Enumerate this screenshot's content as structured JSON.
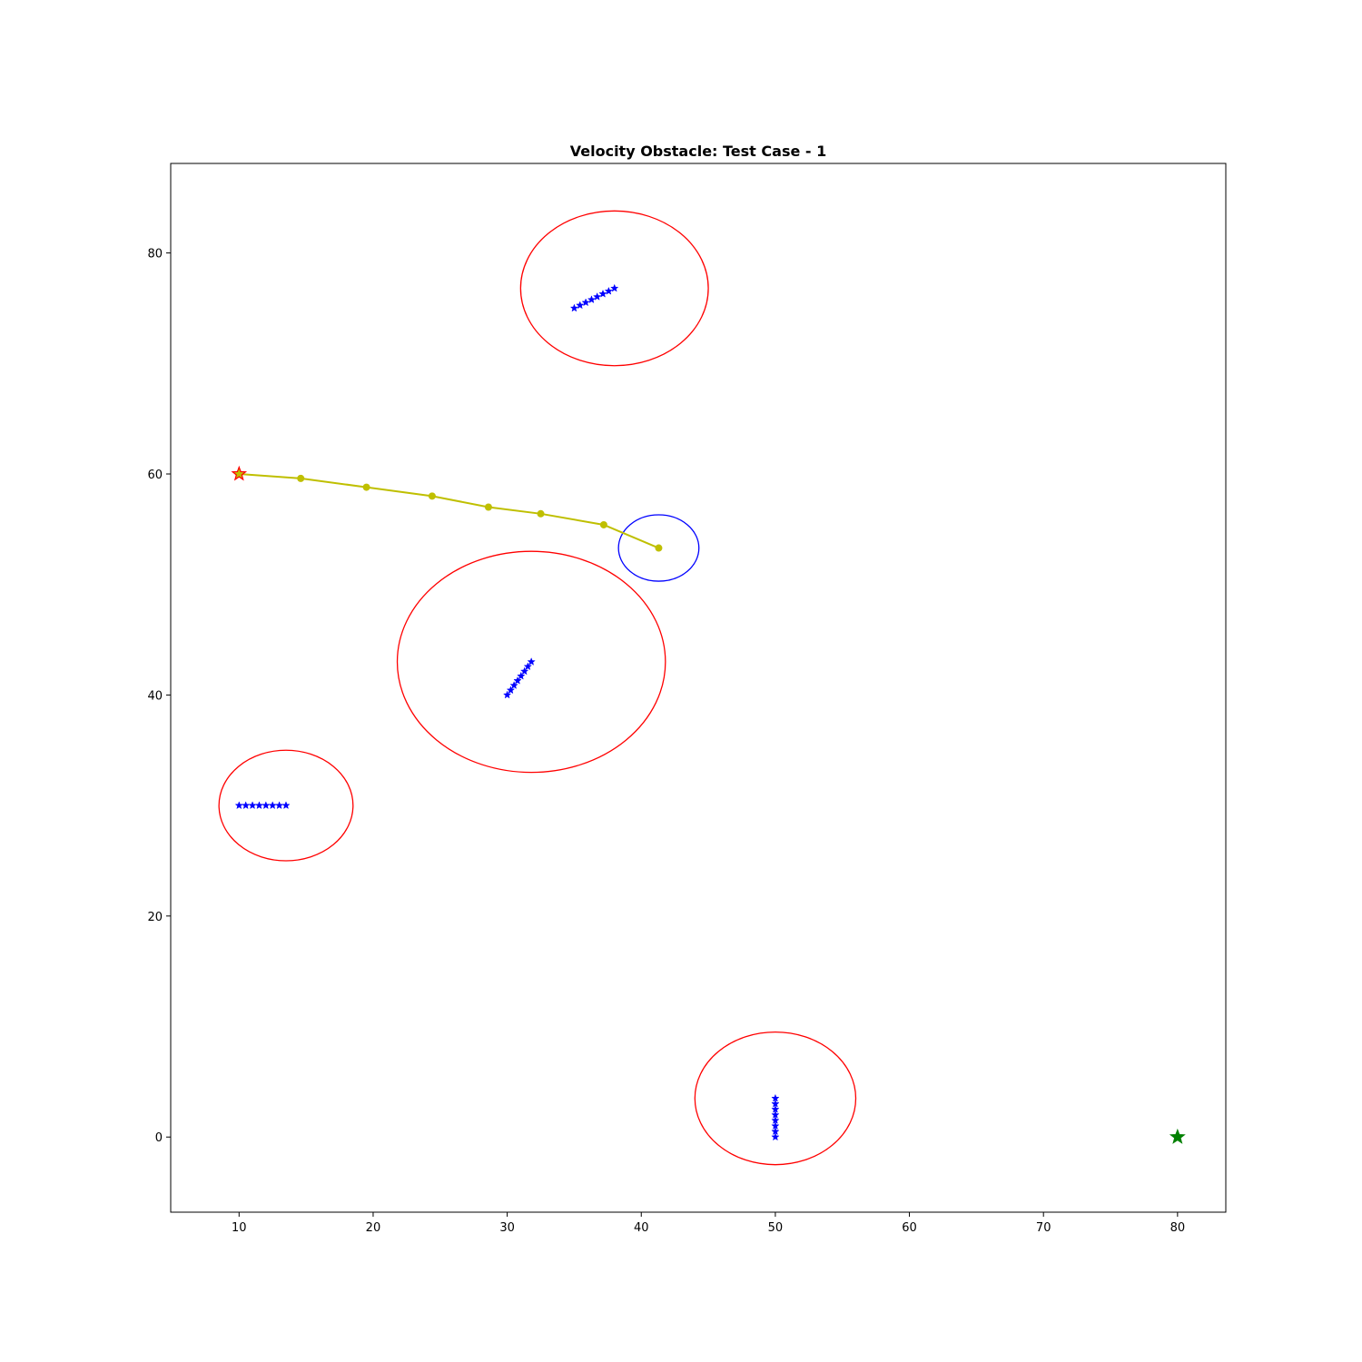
{
  "chart_data": {
    "type": "scatter",
    "title": "Velocity Obstacle: Test Case - 1",
    "xlabel": "",
    "ylabel": "",
    "xlim": [
      4.9,
      83.6
    ],
    "ylim": [
      -6.8,
      88.1
    ],
    "x_ticks": [
      10,
      20,
      30,
      40,
      50,
      60,
      70,
      80
    ],
    "y_ticks": [
      0,
      20,
      40,
      60,
      80
    ],
    "grid": false,
    "legend": "none",
    "start": {
      "x": 10,
      "y": 60,
      "color": "#ff0000",
      "fill": "#bfbf00",
      "marker": "star"
    },
    "goal": {
      "x": 80,
      "y": 0,
      "color": "#008000",
      "marker": "star"
    },
    "robot_path": {
      "color": "#bfbf00",
      "points": [
        [
          10,
          60
        ],
        [
          14.6,
          59.6
        ],
        [
          19.5,
          58.8
        ],
        [
          24.4,
          58.0
        ],
        [
          28.6,
          57.0
        ],
        [
          32.5,
          56.4
        ],
        [
          37.2,
          55.4
        ],
        [
          41.3,
          53.3
        ]
      ]
    },
    "robot_radius_circle": {
      "cx": 41.3,
      "cy": 53.3,
      "r": 3,
      "color": "#0000ff"
    },
    "obstacles": [
      {
        "color": "#ff0000",
        "marker_color": "#0000ff",
        "circle": {
          "cx": 38.0,
          "cy": 76.8,
          "r": 7
        },
        "track": [
          [
            35.0,
            75.0
          ],
          [
            35.43,
            75.26
          ],
          [
            35.86,
            75.51
          ],
          [
            36.29,
            75.77
          ],
          [
            36.71,
            76.03
          ],
          [
            37.14,
            76.29
          ],
          [
            37.57,
            76.54
          ],
          [
            38.0,
            76.8
          ]
        ]
      },
      {
        "color": "#ff0000",
        "marker_color": "#0000ff",
        "circle": {
          "cx": 31.8,
          "cy": 43.0,
          "r": 10
        },
        "track": [
          [
            30.0,
            40.0
          ],
          [
            30.26,
            40.43
          ],
          [
            30.51,
            40.86
          ],
          [
            30.77,
            41.29
          ],
          [
            31.03,
            41.71
          ],
          [
            31.29,
            42.14
          ],
          [
            31.54,
            42.57
          ],
          [
            31.8,
            43.0
          ]
        ]
      },
      {
        "color": "#ff0000",
        "marker_color": "#0000ff",
        "circle": {
          "cx": 13.5,
          "cy": 30.0,
          "r": 5
        },
        "track": [
          [
            10.0,
            30.0
          ],
          [
            10.5,
            30.0
          ],
          [
            11.0,
            30.0
          ],
          [
            11.5,
            30.0
          ],
          [
            12.0,
            30.0
          ],
          [
            12.5,
            30.0
          ],
          [
            13.0,
            30.0
          ],
          [
            13.5,
            30.0
          ]
        ]
      },
      {
        "color": "#ff0000",
        "marker_color": "#0000ff",
        "circle": {
          "cx": 50.0,
          "cy": 3.5,
          "r": 6
        },
        "track": [
          [
            50.0,
            0.0
          ],
          [
            50.0,
            0.5
          ],
          [
            50.0,
            1.0
          ],
          [
            50.0,
            1.5
          ],
          [
            50.0,
            2.0
          ],
          [
            50.0,
            2.5
          ],
          [
            50.0,
            3.0
          ],
          [
            50.0,
            3.5
          ]
        ]
      }
    ]
  }
}
